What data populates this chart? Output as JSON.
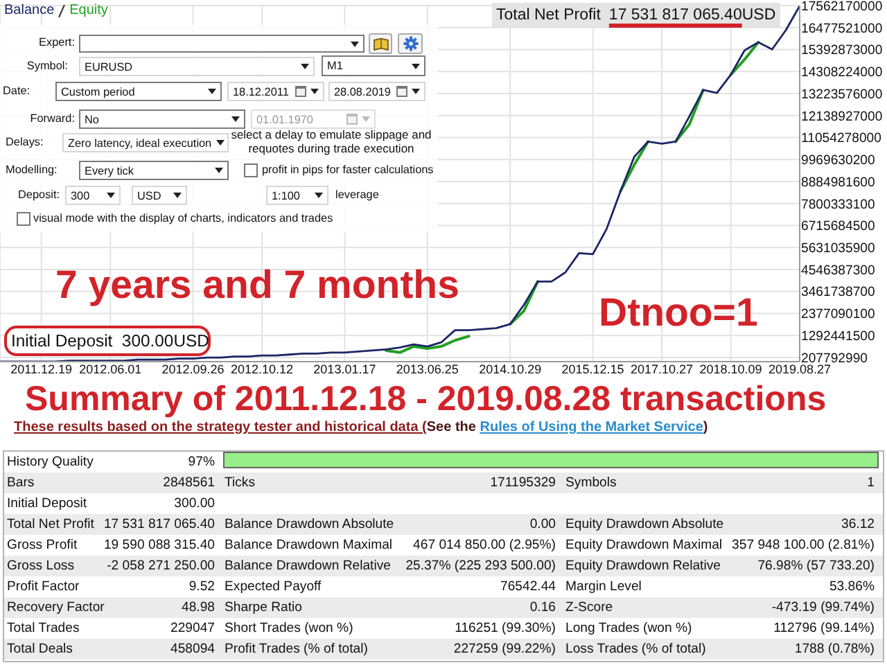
{
  "chart_data": [
    {
      "type": "line",
      "categories": [
        null,
        null,
        null,
        "2011.12.19",
        null,
        null,
        null,
        null,
        "2012.06.01",
        null,
        null,
        null,
        null,
        null,
        "2012.09.26",
        null,
        null,
        null,
        null,
        "2012.10.12",
        null,
        null,
        null,
        null,
        null,
        "2013.01.17",
        null,
        null,
        null,
        null,
        null,
        "2013.06.25",
        null,
        null,
        null,
        null,
        null,
        "2014.10.29",
        null,
        null,
        null,
        null,
        null,
        "2015.12.15",
        null,
        null,
        null,
        null,
        "2017.10.27",
        null,
        null,
        null,
        null,
        "2018.10.09",
        null,
        null,
        null,
        null,
        "2019.08.27"
      ],
      "series": [
        {
          "name": "Balance",
          "color": "#1c2566",
          "values": [
            0,
            0,
            0,
            0,
            0,
            50000000,
            50000000,
            50000000,
            50000000,
            50000000,
            100000000,
            100000000,
            100000000,
            150000000,
            150000000,
            200000000,
            200000000,
            250000000,
            250000000,
            300000000,
            300000000,
            350000000,
            400000000,
            400000000,
            450000000,
            450000000,
            500000000,
            550000000,
            600000000,
            700000000,
            850000000,
            750000000,
            950000000,
            1550000000,
            1550000000,
            1600000000,
            1650000000,
            1850000000,
            2800000000,
            3950000000,
            3950000000,
            4400000000,
            5350000000,
            5300000000,
            6550000000,
            8400000000,
            10100000000,
            10850000000,
            10750000000,
            10850000000,
            12100000000,
            13400000000,
            13250000000,
            14150000000,
            15350000000,
            15750000000,
            15400000000,
            16350000000,
            17550000000
          ]
        },
        {
          "name": "Equity",
          "color": "#22a022",
          "values": [
            null,
            null,
            null,
            null,
            null,
            null,
            null,
            null,
            null,
            null,
            null,
            null,
            null,
            null,
            null,
            null,
            null,
            null,
            null,
            null,
            null,
            null,
            null,
            null,
            null,
            null,
            null,
            null,
            550000000,
            450000000,
            750000000,
            650000000,
            750000000,
            1050000000,
            1250000000,
            null,
            null,
            1850000000,
            2500000000,
            3950000000,
            null,
            null,
            null,
            null,
            null,
            8400000000,
            9700000000,
            10850000000,
            null,
            10850000000,
            11700000000,
            13400000000,
            null,
            14150000000,
            14900000000,
            15750000000,
            null,
            null,
            null
          ]
        }
      ],
      "ylim": [
        0,
        17562170000
      ],
      "yticks": [
        207792990,
        1292441500,
        2377090100,
        3461738700,
        4546387300,
        5631035900,
        6715684500,
        7800333100,
        8884981600,
        9969630200,
        11054278000,
        12138927000,
        13223576000,
        14308224000,
        15392873000,
        16477521000,
        17562170000
      ],
      "grid": true,
      "legend": "top left",
      "annotations": [
        "Total Net Profit",
        "17 531 817 065.40",
        "USD",
        "7 years and 7 months",
        "Initial Deposit  300.00USD",
        "Dtnoo=1"
      ]
    },
    {
      "type": "other",
      "annotations": [
        "Expert:",
        "Symbol:",
        "EURUSD",
        "M1",
        "Date:",
        "Custom period",
        "18.12.2011",
        "28.08.2019",
        "Forward:",
        "No",
        "01.01.1970",
        "Delays:",
        "Zero latency, ideal execution",
        "select a delay to emulate slippage and requotes during trade execution",
        "Modelling:",
        "Every tick",
        "profit in pips for faster calculations",
        "Deposit:",
        "300",
        "USD",
        "1:100",
        "leverage",
        "visual mode with the display of charts, indicators and trades"
      ]
    },
    {
      "type": "other",
      "title": "Summary of 2011.12.18 - 2019.08.28 transactions",
      "annotations": [
        "These results based on the strategy tester and historical data (",
        "See the ",
        "Rules of Using the Market Service",
        ")",
        "History Quality",
        "97%",
        "Bars",
        "2848561",
        "Ticks",
        "171195329",
        "Symbols",
        "1",
        "Initial Deposit",
        "300.00",
        "Total Net Profit",
        "17 531 817 065.40",
        "Balance Drawdown Absolute",
        "0.00",
        "Equity Drawdown Absolute",
        "36.12",
        "Gross Profit",
        "19 590 088 315.40",
        "Balance Drawdown Maximal",
        "467 014 850.00 (2.95%)",
        "Equity Drawdown Maximal",
        "357 948 100.00 (2.81%)",
        "Gross Loss",
        "-2 058 271 250.00",
        "Balance Drawdown Relative",
        "25.37% (225 293 500.00)",
        "Equity Drawdown Relative",
        "76.98% (57 733.20)",
        "Profit Factor",
        "9.52",
        "Expected Payoff",
        "76542.44",
        "Margin Level",
        "53.86%",
        "Recovery Factor",
        "48.98",
        "Sharpe Ratio",
        "0.16",
        "Z-Score",
        "-473.19 (99.74%)",
        "Total Trades",
        "229047",
        "Short Trades (won %)",
        "116251 (99.30%)",
        "Long Trades (won %)",
        "112796 (99.14%)",
        "Total Deals",
        "458094",
        "Profit Trades (% of total)",
        "227259 (99.22%)",
        "Loss Trades (% of total)",
        "1788 (0.78%)"
      ]
    }
  ]
}
